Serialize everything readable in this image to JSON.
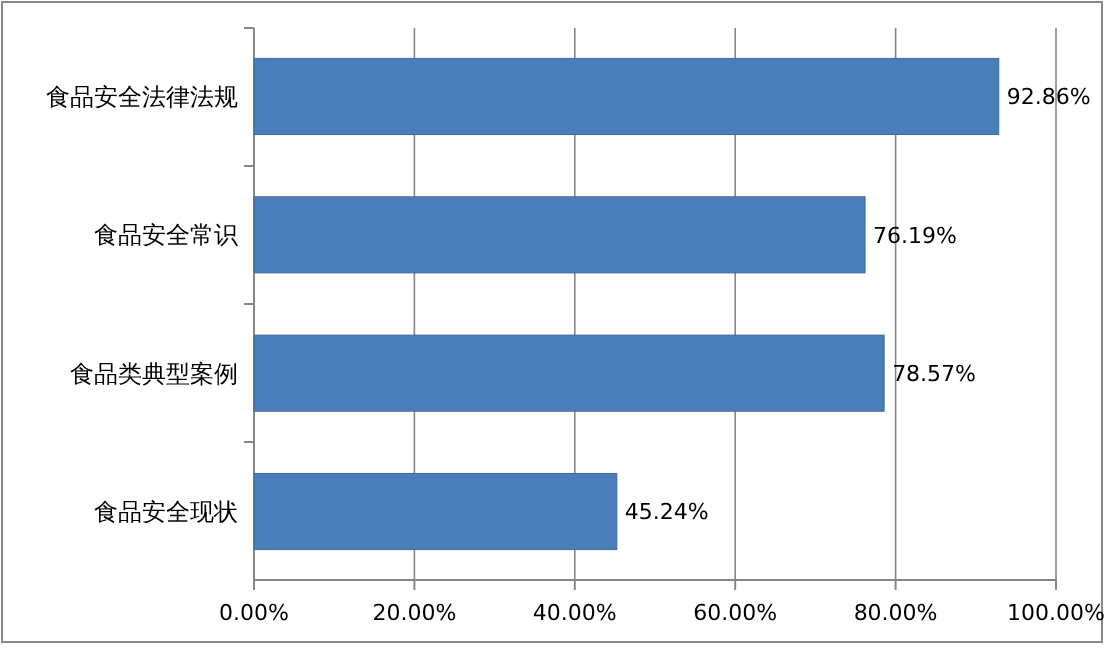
{
  "chart_data": {
    "type": "bar",
    "orientation": "horizontal",
    "categories": [
      "食品安全法律法规",
      "食品安全常识",
      "食品类典型案例",
      "食品安全现状"
    ],
    "values": [
      92.86,
      76.19,
      78.57,
      45.24
    ],
    "value_labels": [
      "92.86%",
      "76.19%",
      "78.57%",
      "45.24%"
    ],
    "color": "#4a7ebb",
    "xlim": [
      0,
      100
    ],
    "xticks": [
      {
        "value": 0,
        "label": "0.00%"
      },
      {
        "value": 20,
        "label": "20.00%"
      },
      {
        "value": 40,
        "label": "40.00%"
      },
      {
        "value": 60,
        "label": "60.00%"
      },
      {
        "value": 80,
        "label": "80.00%"
      },
      {
        "value": 100,
        "label": "100.00%"
      }
    ],
    "grid": "x"
  }
}
